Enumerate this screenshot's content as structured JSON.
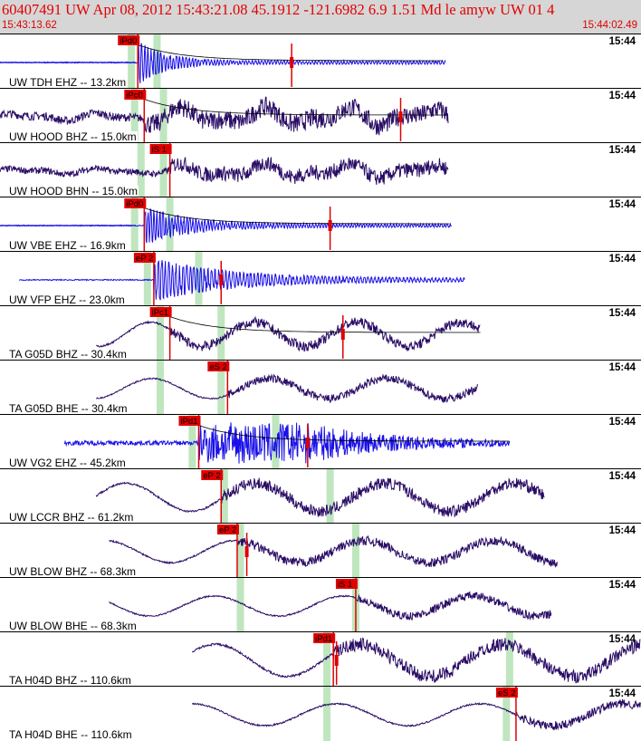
{
  "header": {
    "title": "60407491 UW Apr 08, 2012 15:43:21.08    45.1912 -121.6982  6.9 1.51 Md le amyw UW 01    4",
    "start_time": "15:43:13.62",
    "end_time": "15:44:02.49"
  },
  "colors": {
    "trace_dark": "#2a0d66",
    "trace_blue": "#1a10e8",
    "pick": "#e00000",
    "green_band": "#bfe6bf"
  },
  "traces": [
    {
      "label": "UW TDH EHZ -- 13.2km",
      "time_label": "15:44",
      "pick_label": "iPd0",
      "color": "blue",
      "style": "impulse",
      "amp": 0.9,
      "decay": 0.035,
      "freq": 1.8,
      "start_frac": 0.0,
      "end_frac": 0.695,
      "arrival_frac": 0.215,
      "green": [
        0.205,
        0.245
      ],
      "red_mark": 0.455,
      "amp_curve": true,
      "flat_line": true
    },
    {
      "label": "UW HOOD BHZ -- 15.0km",
      "time_label": "15:44",
      "pick_label": "iPc0",
      "color": "dark",
      "style": "noisy",
      "amp": 0.7,
      "decay": 0.0,
      "freq": 1.2,
      "start_frac": 0.0,
      "end_frac": 0.7,
      "arrival_frac": 0.225,
      "green": [
        0.21,
        0.255
      ],
      "red_mark": 0.625,
      "amp_curve": true,
      "flat_line": false
    },
    {
      "label": "UW HOOD BHN -- 15.0km",
      "time_label": "15:44",
      "pick_label": "iS 1",
      "color": "dark",
      "style": "noisy",
      "amp": 0.55,
      "decay": 0.0,
      "freq": 1.0,
      "start_frac": 0.0,
      "end_frac": 0.7,
      "arrival_frac": 0.265,
      "green": [
        0.22,
        0.255
      ],
      "red_mark": -1,
      "amp_curve": false,
      "flat_line": false
    },
    {
      "label": "UW VBE EHZ -- 16.9km",
      "time_label": "15:44",
      "pick_label": "iPd0",
      "color": "blue",
      "style": "impulse",
      "amp": 0.75,
      "decay": 0.02,
      "freq": 1.9,
      "start_frac": 0.0,
      "end_frac": 0.705,
      "arrival_frac": 0.225,
      "green": [
        0.21,
        0.265
      ],
      "red_mark": 0.515,
      "amp_curve": true,
      "flat_line": true
    },
    {
      "label": "UW VFP EHZ -- 23.0km",
      "time_label": "15:44",
      "pick_label": "eP 2",
      "color": "blue",
      "style": "impulse",
      "amp": 0.85,
      "decay": 0.012,
      "freq": 1.6,
      "start_frac": 0.03,
      "end_frac": 0.725,
      "arrival_frac": 0.24,
      "green": [
        0.23,
        0.31
      ],
      "red_mark": 0.345,
      "amp_curve": false,
      "flat_line": false
    },
    {
      "label": "TA G05D BHZ -- 30.4km",
      "time_label": "15:44",
      "pick_label": "iPc1",
      "color": "dark",
      "style": "wave",
      "amp": 0.6,
      "decay": 0.0,
      "freq": 0.25,
      "start_frac": 0.15,
      "end_frac": 0.75,
      "arrival_frac": 0.265,
      "green": [
        0.25,
        0.345
      ],
      "red_mark": 0.535,
      "amp_curve": true,
      "flat_line": false
    },
    {
      "label": "TA G05D BHE -- 30.4km",
      "time_label": "15:44",
      "pick_label": "eS 2",
      "color": "dark",
      "style": "wave",
      "amp": 0.5,
      "decay": 0.0,
      "freq": 0.22,
      "start_frac": 0.15,
      "end_frac": 0.745,
      "arrival_frac": 0.355,
      "green": [
        0.25,
        0.345
      ],
      "red_mark": -1,
      "amp_curve": false,
      "flat_line": false
    },
    {
      "label": "UW VG2 EHZ -- 45.2km",
      "time_label": "15:44",
      "pick_label": "iPd1",
      "color": "blue",
      "style": "burst",
      "amp": 0.7,
      "decay": 0.0,
      "freq": 1.9,
      "start_frac": 0.1,
      "end_frac": 0.795,
      "arrival_frac": 0.31,
      "green": [
        0.3,
        0.43
      ],
      "red_mark": 0.48,
      "amp_curve": true,
      "flat_line": false
    },
    {
      "label": "UW LCCR BHZ -- 61.2km",
      "time_label": "15:44",
      "pick_label": "eP 2",
      "color": "dark",
      "style": "wave",
      "amp": 0.7,
      "decay": 0.0,
      "freq": 0.2,
      "start_frac": 0.15,
      "end_frac": 0.85,
      "arrival_frac": 0.345,
      "green": [
        0.35,
        0.515
      ],
      "red_mark": -1,
      "amp_curve": false,
      "flat_line": false
    },
    {
      "label": "UW BLOW BHZ -- 68.3km",
      "time_label": "15:44",
      "pick_label": "eP 2",
      "color": "dark",
      "style": "wave",
      "amp": 0.55,
      "decay": 0.0,
      "freq": 0.2,
      "start_frac": 0.17,
      "end_frac": 0.87,
      "arrival_frac": 0.37,
      "green": [
        0.375,
        0.555
      ],
      "red_mark": 0.385,
      "amp_curve": false,
      "flat_line": false
    },
    {
      "label": "UW BLOW BHE -- 68.3km",
      "time_label": "15:44",
      "pick_label": "iS 1",
      "color": "dark",
      "style": "wave",
      "amp": 0.5,
      "decay": 0.0,
      "freq": 0.2,
      "start_frac": 0.17,
      "end_frac": 0.86,
      "arrival_frac": 0.555,
      "green": [
        0.375,
        0.555
      ],
      "red_mark": -1,
      "amp_curve": false,
      "flat_line": false
    },
    {
      "label": "TA H04D BHZ -- 110.6km",
      "time_label": "15:44",
      "pick_label": "iPd1",
      "color": "dark",
      "style": "wave",
      "amp": 0.8,
      "decay": 0.0,
      "freq": 0.18,
      "start_frac": 0.3,
      "end_frac": 1.0,
      "arrival_frac": 0.52,
      "green": [
        0.51,
        0.795
      ],
      "red_mark": 0.525,
      "amp_curve": false,
      "flat_line": false
    },
    {
      "label": "TA H04D BHE -- 110.6km",
      "time_label": "15:44",
      "pick_label": "eS 2",
      "color": "dark",
      "style": "wave",
      "amp": 0.55,
      "decay": 0.0,
      "freq": 0.18,
      "start_frac": 0.3,
      "end_frac": 1.0,
      "arrival_frac": 0.805,
      "green": [
        0.51,
        0.79
      ],
      "red_mark": -1,
      "amp_curve": false,
      "flat_line": false
    }
  ]
}
